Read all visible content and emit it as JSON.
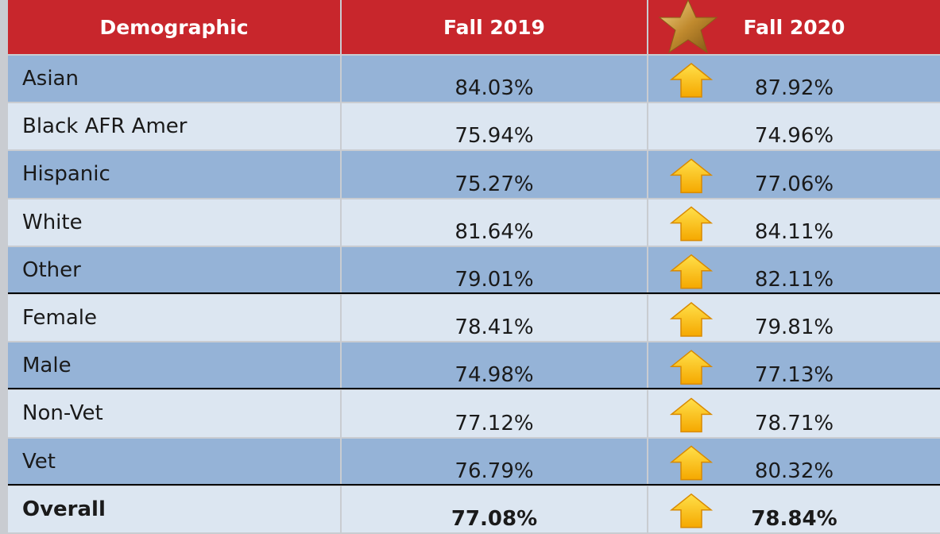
{
  "table": {
    "header": [
      "Demographic",
      "Fall 2019",
      "Fall 2020"
    ],
    "rows": [
      [
        "Asian",
        "84.03%",
        "87.92%"
      ],
      [
        "Black AFR Amer",
        "75.94%",
        "74.96%"
      ],
      [
        "Hispanic",
        "75.27%",
        "77.06%"
      ],
      [
        "White",
        "81.64%",
        "84.11%"
      ],
      [
        "Other",
        "79.01%",
        "82.11%"
      ],
      [
        "Female",
        "78.41%",
        "79.81%"
      ],
      [
        "Male",
        "74.98%",
        "77.13%"
      ],
      [
        "Non-Vet",
        "77.12%",
        "78.71%"
      ],
      [
        "Vet",
        "76.79%",
        "80.32%"
      ],
      [
        "Overall",
        "77.08%",
        "78.84%"
      ]
    ]
  }
}
